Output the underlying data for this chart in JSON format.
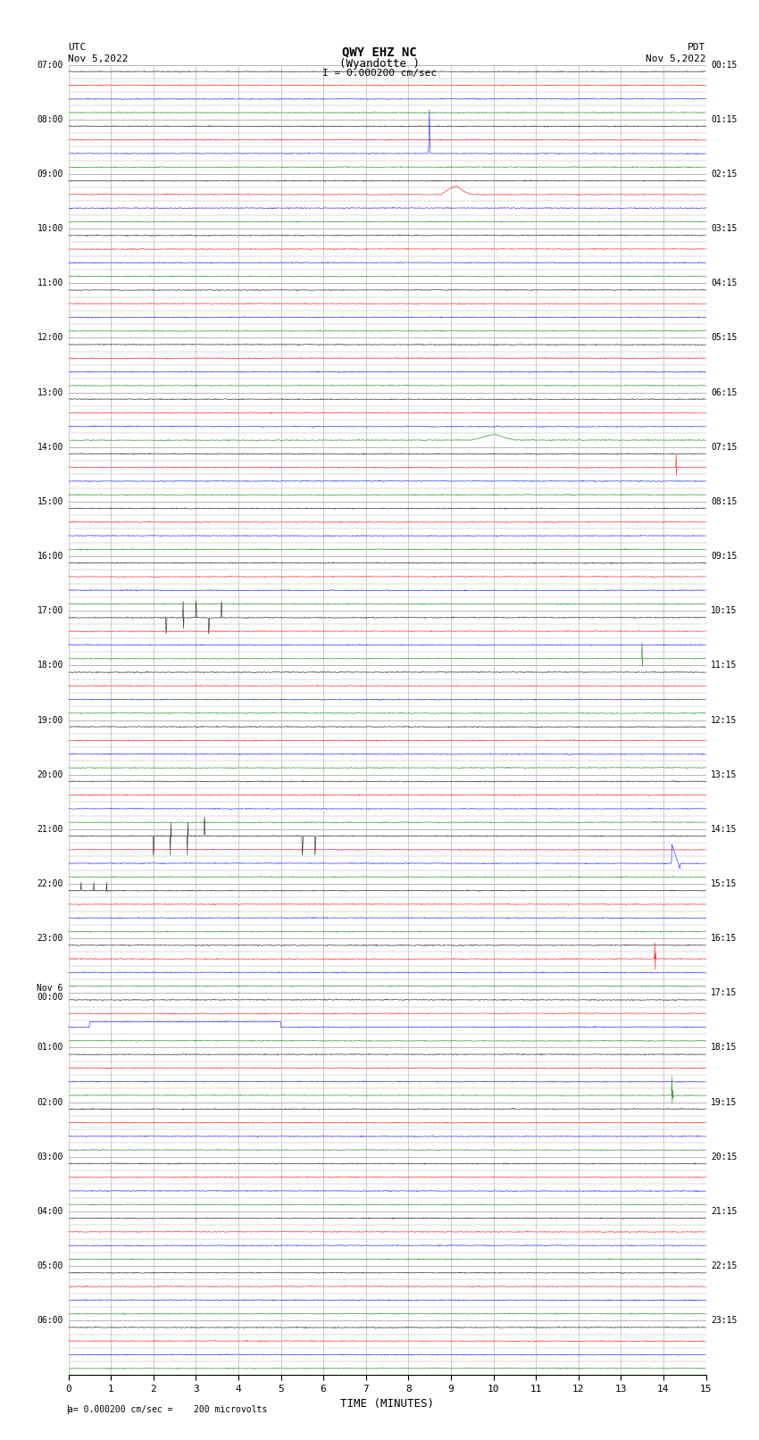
{
  "title_line1": "QWY EHZ NC",
  "title_line2": "(Wyandotte )",
  "title_line3": "I = 0.000200 cm/sec",
  "left_header_line1": "UTC",
  "left_header_line2": "Nov 5,2022",
  "right_header_line1": "PDT",
  "right_header_line2": "Nov 5,2022",
  "footer_text": "= 0.000200 cm/sec =    200 microvolts",
  "xlabel": "TIME (MINUTES)",
  "xticks": [
    0,
    1,
    2,
    3,
    4,
    5,
    6,
    7,
    8,
    9,
    10,
    11,
    12,
    13,
    14,
    15
  ],
  "xlim": [
    0,
    15
  ],
  "fig_width": 8.5,
  "fig_height": 16.13,
  "dpi": 100,
  "bg_color": "#ffffff",
  "grid_color": "#aaaaaa",
  "trace_colors": [
    "black",
    "red",
    "blue",
    "green"
  ],
  "utc_times": [
    "07:00",
    "",
    "",
    "",
    "08:00",
    "",
    "",
    "",
    "09:00",
    "",
    "",
    "",
    "10:00",
    "",
    "",
    "",
    "11:00",
    "",
    "",
    "",
    "12:00",
    "",
    "",
    "",
    "13:00",
    "",
    "",
    "",
    "14:00",
    "",
    "",
    "",
    "15:00",
    "",
    "",
    "",
    "16:00",
    "",
    "",
    "",
    "17:00",
    "",
    "",
    "",
    "18:00",
    "",
    "",
    "",
    "19:00",
    "",
    "",
    "",
    "20:00",
    "",
    "",
    "",
    "21:00",
    "",
    "",
    "",
    "22:00",
    "",
    "",
    "",
    "23:00",
    "",
    "",
    "",
    "Nov 6\n00:00",
    "",
    "",
    "",
    "01:00",
    "",
    "",
    "",
    "02:00",
    "",
    "",
    "",
    "03:00",
    "",
    "",
    "",
    "04:00",
    "",
    "",
    "",
    "05:00",
    "",
    "",
    "",
    "06:00",
    "",
    "",
    ""
  ],
  "pdt_times": [
    "00:15",
    "",
    "",
    "",
    "01:15",
    "",
    "",
    "",
    "02:15",
    "",
    "",
    "",
    "03:15",
    "",
    "",
    "",
    "04:15",
    "",
    "",
    "",
    "05:15",
    "",
    "",
    "",
    "06:15",
    "",
    "",
    "",
    "07:15",
    "",
    "",
    "",
    "08:15",
    "",
    "",
    "",
    "09:15",
    "",
    "",
    "",
    "10:15",
    "",
    "",
    "",
    "11:15",
    "",
    "",
    "",
    "12:15",
    "",
    "",
    "",
    "13:15",
    "",
    "",
    "",
    "14:15",
    "",
    "",
    "",
    "15:15",
    "",
    "",
    "",
    "16:15",
    "",
    "",
    "",
    "17:15",
    "",
    "",
    "",
    "18:15",
    "",
    "",
    "",
    "19:15",
    "",
    "",
    "",
    "20:15",
    "",
    "",
    "",
    "21:15",
    "",
    "",
    "",
    "22:15",
    "",
    "",
    "",
    "23:15",
    "",
    "",
    ""
  ],
  "num_rows": 96,
  "noise_amplitude": 0.3,
  "seed": 42
}
